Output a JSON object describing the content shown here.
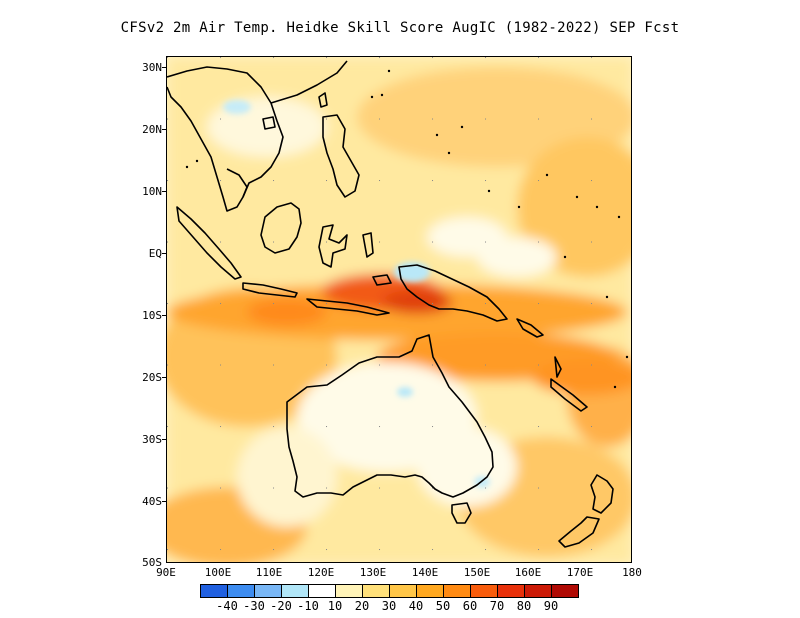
{
  "title": "CFSv2  2m Air Temp. Heidke Skill Score AugIC (1982-2022) SEP Fcst",
  "axes": {
    "lat_labels": [
      "30N",
      "20N",
      "10N",
      "EQ",
      "10S",
      "20S",
      "30S",
      "40S",
      "50S"
    ],
    "lon_labels": [
      "90E",
      "100E",
      "110E",
      "120E",
      "130E",
      "140E",
      "150E",
      "160E",
      "170E",
      "180"
    ]
  },
  "colorbar": {
    "colors": [
      "#2060e0",
      "#3d8cf0",
      "#79b7f6",
      "#b1e6f8",
      "#ffffff",
      "#fff3b8",
      "#ffe07a",
      "#ffc648",
      "#ffa820",
      "#ff8a12",
      "#f85c0c",
      "#e8300a",
      "#cc1a06",
      "#b00a04"
    ],
    "labels": [
      "-40",
      "-30",
      "-20",
      "-10",
      "10",
      "20",
      "30",
      "40",
      "50",
      "60",
      "70",
      "80",
      "90"
    ]
  },
  "map": {
    "region": "Maritime Continent / Australia / West Pacific",
    "lon_range": [
      90,
      180
    ],
    "lat_range": [
      -50,
      32
    ]
  }
}
